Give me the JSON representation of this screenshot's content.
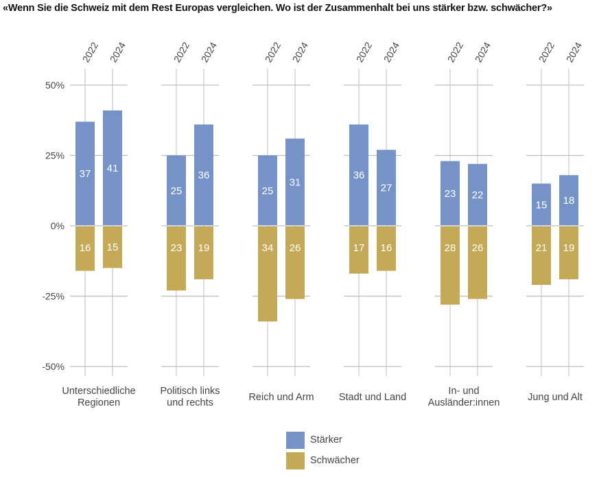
{
  "chart_data": {
    "type": "bar",
    "title": "«Wenn Sie die Schweiz mit dem Rest Europas vergleichen. Wo ist der Zusammenhalt bei uns stärker bzw. schwächer?»",
    "ylim": [
      -50,
      50
    ],
    "yticks": [
      50,
      25,
      0,
      -25,
      -50
    ],
    "ytick_labels": [
      "50%",
      "25%",
      "0%",
      "-25%",
      "-50%"
    ],
    "years": [
      "2022",
      "2024"
    ],
    "categories": [
      [
        "Unterschiedliche",
        "Regionen"
      ],
      [
        "Politisch links",
        "und rechts"
      ],
      [
        "Reich und Arm"
      ],
      [
        "Stadt und Land"
      ],
      [
        "In- und",
        "Ausländer:innen"
      ],
      [
        "Jung und Alt"
      ]
    ],
    "series": [
      {
        "name": "Stärker",
        "color": "#7593c6",
        "values": [
          [
            37,
            41
          ],
          [
            25,
            36
          ],
          [
            25,
            31
          ],
          [
            36,
            27
          ],
          [
            23,
            22
          ],
          [
            15,
            18
          ]
        ]
      },
      {
        "name": "Schwächer",
        "color": "#c4a957",
        "values": [
          [
            16,
            15
          ],
          [
            23,
            19
          ],
          [
            34,
            26
          ],
          [
            17,
            16
          ],
          [
            28,
            26
          ],
          [
            21,
            19
          ]
        ]
      }
    ]
  },
  "legend": {
    "items": [
      {
        "label": "Stärker",
        "color": "#7593c6"
      },
      {
        "label": "Schwächer",
        "color": "#c4a957"
      }
    ]
  }
}
